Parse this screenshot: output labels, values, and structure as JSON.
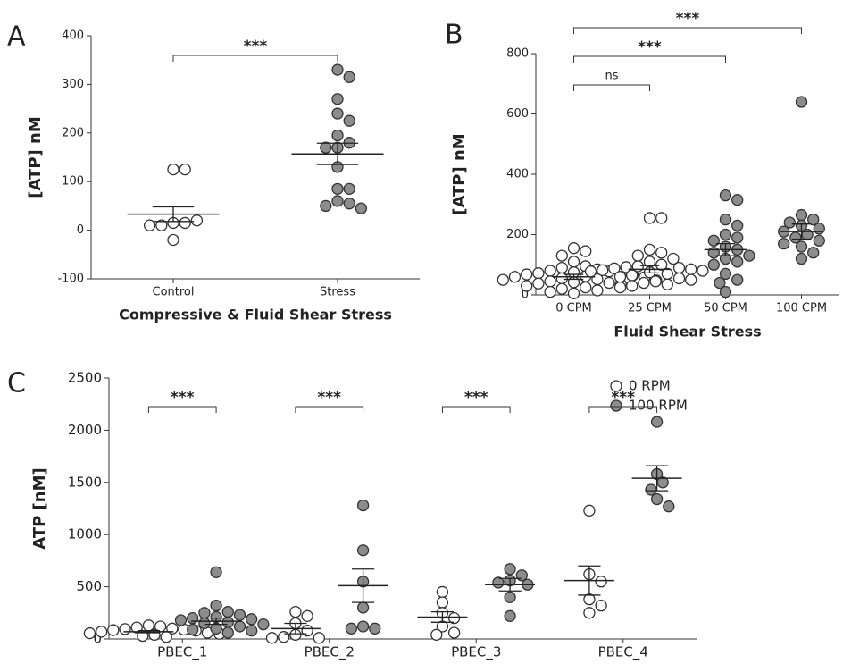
{
  "chart_data": [
    {
      "type": "dotplot",
      "panel": "A",
      "xlabel": "Compressive & Fluid Shear Stress",
      "ylabel": "[ATP] nM",
      "categories": [
        "Control",
        "Stress"
      ],
      "ylim": [
        -100,
        400
      ],
      "yticks": [
        -100,
        0,
        100,
        200,
        300,
        400
      ],
      "series": [
        {
          "colors": [
            "#ffffff",
            "#8c8c8c"
          ],
          "values": [
            [
              125,
              125,
              15,
              15,
              10,
              20,
              10,
              -20
            ],
            [
              330,
              315,
              270,
              240,
              225,
              195,
              180,
              170,
              170,
              130,
              85,
              85,
              60,
              55,
              50,
              45
            ]
          ],
          "mean": [
            33,
            157
          ],
          "sem": [
            15,
            22
          ]
        }
      ],
      "brackets": [
        {
          "categories": [
            "Control",
            "Stress"
          ],
          "label": "***"
        }
      ]
    },
    {
      "type": "dotplot",
      "panel": "B",
      "xlabel": "Fluid Shear Stress",
      "ylabel": "[ATP] nM",
      "categories": [
        "0 CPM",
        "25 CPM",
        "50 CPM",
        "100 CPM"
      ],
      "ylim": [
        0,
        800
      ],
      "yticks": [
        0,
        200,
        400,
        600,
        800
      ],
      "series": [
        {
          "colors": [
            "#ffffff",
            "#ffffff",
            "#8c8c8c",
            "#8c8c8c"
          ],
          "values": [
            [
              155,
              145,
              130,
              110,
              95,
              90,
              85,
              80,
              78,
              75,
              72,
              70,
              68,
              65,
              62,
              60,
              58,
              55,
              52,
              50,
              48,
              45,
              42,
              40,
              38,
              35,
              30,
              25,
              20,
              15,
              10,
              5
            ],
            [
              255,
              255,
              150,
              140,
              130,
              120,
              110,
              100,
              95,
              92,
              90,
              88,
              85,
              82,
              80,
              78,
              75,
              70,
              65,
              60,
              55,
              50,
              45,
              40,
              35,
              30,
              25
            ],
            [
              330,
              315,
              250,
              230,
              200,
              190,
              180,
              160,
              150,
              140,
              130,
              120,
              110,
              100,
              70,
              50,
              40,
              10
            ],
            [
              640,
              265,
              250,
              240,
              230,
              220,
              210,
              200,
              190,
              180,
              170,
              160,
              140,
              120
            ]
          ],
          "mean": [
            60,
            85,
            150,
            210
          ],
          "sem": [
            8,
            12,
            20,
            25
          ]
        }
      ],
      "brackets": [
        {
          "categories": [
            "0 CPM",
            "25 CPM"
          ],
          "label": "ns"
        },
        {
          "categories": [
            "0 CPM",
            "50 CPM"
          ],
          "label": "***"
        },
        {
          "categories": [
            "0 CPM",
            "100 CPM"
          ],
          "label": "***"
        }
      ]
    },
    {
      "type": "dotplot",
      "panel": "C",
      "ylabel": "ATP [nM]",
      "categories": [
        "PBEC_1",
        "PBEC_2",
        "PBEC_3",
        "PBEC_4"
      ],
      "ylim": [
        0,
        2500
      ],
      "yticks": [
        0,
        500,
        1000,
        1500,
        2000,
        2500
      ],
      "series": [
        {
          "name": "0 RPM",
          "color": "#ffffff",
          "values": [
            [
              130,
              120,
              110,
              100,
              95,
              90,
              85,
              80,
              70,
              60,
              55,
              50,
              40,
              30,
              20
            ],
            [
              260,
              220,
              150,
              80,
              40,
              20,
              10,
              10
            ],
            [
              450,
              350,
              250,
              200,
              120,
              60,
              40
            ],
            [
              1230,
              620,
              550,
              380,
              320,
              250
            ]
          ],
          "mean": [
            70,
            100,
            210,
            560
          ],
          "sem": [
            10,
            50,
            50,
            140
          ]
        },
        {
          "name": "100 RPM",
          "color": "#8c8c8c",
          "values": [
            [
              640,
              320,
              260,
              250,
              230,
              210,
              200,
              190,
              180,
              160,
              150,
              140,
              120,
              100,
              90,
              80,
              60
            ],
            [
              1280,
              850,
              550,
              300,
              120,
              100,
              100
            ],
            [
              670,
              610,
              560,
              540,
              520,
              400,
              220
            ],
            [
              2080,
              1580,
              1500,
              1430,
              1340,
              1270
            ]
          ],
          "mean": [
            170,
            510,
            520,
            1540
          ],
          "sem": [
            30,
            160,
            60,
            120
          ]
        }
      ],
      "brackets": [
        {
          "category": "PBEC_1",
          "label": "***"
        },
        {
          "category": "PBEC_2",
          "label": "***"
        },
        {
          "category": "PBEC_3",
          "label": "***"
        },
        {
          "category": "PBEC_4",
          "label": "***"
        }
      ]
    }
  ]
}
